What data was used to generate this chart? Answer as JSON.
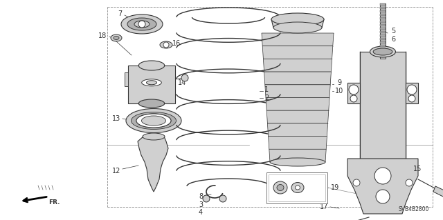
{
  "bg_color": "#ffffff",
  "line_color": "#333333",
  "part_number_code": "SVB4B2800",
  "figsize": [
    6.4,
    3.19
  ],
  "dpi": 100
}
